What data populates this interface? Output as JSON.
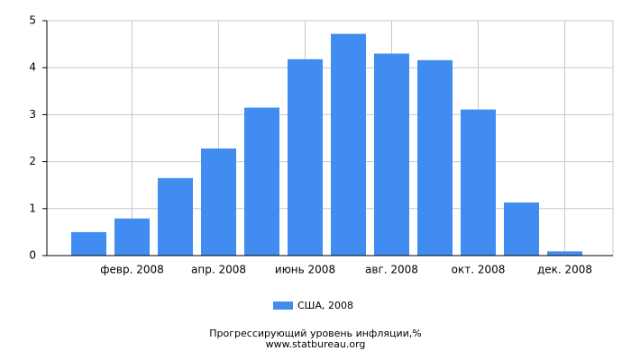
{
  "chart_data": {
    "type": "bar",
    "categories": [
      null,
      "февр. 2008",
      null,
      "апр. 2008",
      null,
      "июнь 2008",
      null,
      "авг. 2008",
      null,
      "окт. 2008",
      null,
      "дек. 2008"
    ],
    "series": [
      {
        "name": "США, 2008",
        "color": "#418cf0",
        "values": [
          0.5,
          0.79,
          1.65,
          2.28,
          3.15,
          4.18,
          4.72,
          4.3,
          4.16,
          3.11,
          1.13,
          0.09
        ]
      }
    ],
    "ylim": [
      0,
      5
    ],
    "yticks": [
      0,
      1,
      2,
      3,
      4,
      5
    ],
    "grid": true,
    "caption": "Прогрессирующий уровень инфляции,%",
    "source": "www.statbureau.org"
  }
}
